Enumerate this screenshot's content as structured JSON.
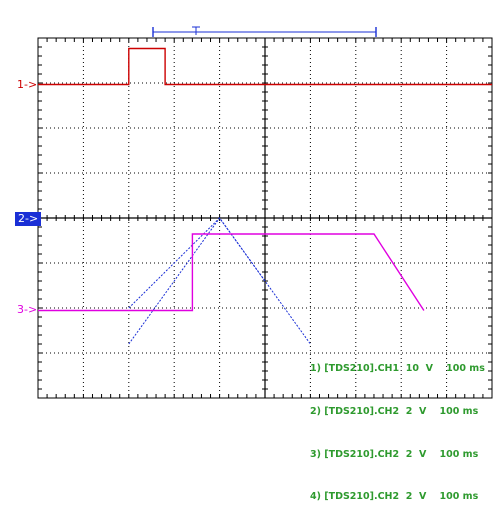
{
  "markers": {
    "ch1": "1->",
    "ch2": "2->",
    "ch3": "3->"
  },
  "legend": [
    "1) [TDS210].CH1  10  V    100 ms",
    "2) [TDS210].CH2  2  V    100 ms",
    "3) [TDS210].CH2  2  V    100 ms",
    "4) [TDS210].CH2  2  V    100 ms"
  ],
  "colors": {
    "ch1": "#cc0000",
    "ch2": "#1a2fd6",
    "ch3": "#e000e0",
    "legend": "#2e9a2e",
    "grid": "#000000"
  },
  "chart_data": {
    "type": "line",
    "grid": true,
    "divisions": {
      "x": 10,
      "y": 8
    },
    "series": [
      {
        "points": [
          [
            0,
            0
          ],
          [
            2,
            0
          ],
          [
            2,
            0.8
          ],
          [
            2.8,
            0.8
          ],
          [
            2.8,
            0
          ],
          [
            10,
            0
          ]
        ]
      },
      {
        "points": [
          [
            2,
            -2.8
          ],
          [
            4,
            0
          ],
          [
            6,
            -2.8
          ]
        ]
      },
      {
        "points": [
          [
            2,
            -2
          ],
          [
            4,
            0
          ],
          [
            5,
            -1.4
          ]
        ]
      },
      {
        "points": [
          [
            0,
            0
          ],
          [
            3.4,
            0
          ],
          [
            3.4,
            1.7
          ],
          [
            7.4,
            1.7
          ],
          [
            8.5,
            0
          ]
        ]
      }
    ]
  }
}
